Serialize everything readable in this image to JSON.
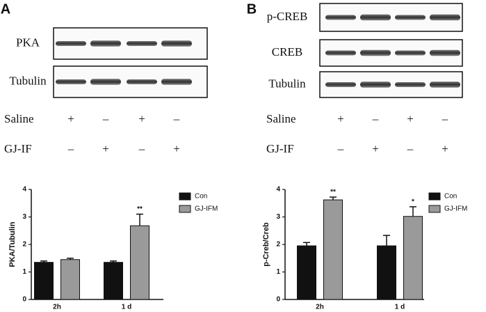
{
  "panels": [
    {
      "letter": "A",
      "blot_labels": [
        "PKA",
        "Tubulin"
      ],
      "treatments": [
        {
          "name": "Saline",
          "marks": [
            "+",
            "–",
            "+",
            "–"
          ]
        },
        {
          "name": "GJ-IF",
          "marks": [
            "–",
            "+",
            "–",
            "+"
          ]
        }
      ]
    },
    {
      "letter": "B",
      "blot_labels": [
        "p-CREB",
        "CREB",
        "Tubulin"
      ],
      "treatments": [
        {
          "name": "Saline",
          "marks": [
            "+",
            "–",
            "+",
            "–"
          ]
        },
        {
          "name": "GJ-IF",
          "marks": [
            "–",
            "+",
            "–",
            "+"
          ]
        }
      ]
    }
  ],
  "chart_data": [
    {
      "type": "bar",
      "y_label": "PKA/Tubulin",
      "categories": [
        "2h",
        "1 d"
      ],
      "ylim": [
        0,
        4
      ],
      "yticks": [
        0,
        1,
        2,
        3,
        4
      ],
      "legend": "right",
      "series": [
        {
          "name": "Con",
          "color": "#111111",
          "values": [
            1.35,
            1.35
          ],
          "errors": [
            0.05,
            0.05
          ]
        },
        {
          "name": "GJ-IFM",
          "color": "#9a9a9a",
          "values": [
            1.45,
            2.68
          ],
          "errors": [
            0.05,
            0.42
          ],
          "significance": [
            null,
            "**"
          ]
        }
      ]
    },
    {
      "type": "bar",
      "y_label": "p-Creb/Creb",
      "categories": [
        "2h",
        "1 d"
      ],
      "ylim": [
        0,
        4
      ],
      "yticks": [
        0,
        1,
        2,
        3,
        4
      ],
      "legend": "right",
      "series": [
        {
          "name": "Con",
          "color": "#111111",
          "values": [
            1.95,
            1.95
          ],
          "errors": [
            0.12,
            0.38
          ]
        },
        {
          "name": "GJ-IFM",
          "color": "#9a9a9a",
          "values": [
            3.62,
            3.02
          ],
          "errors": [
            0.1,
            0.35
          ],
          "significance": [
            "**",
            "*"
          ]
        }
      ]
    }
  ]
}
